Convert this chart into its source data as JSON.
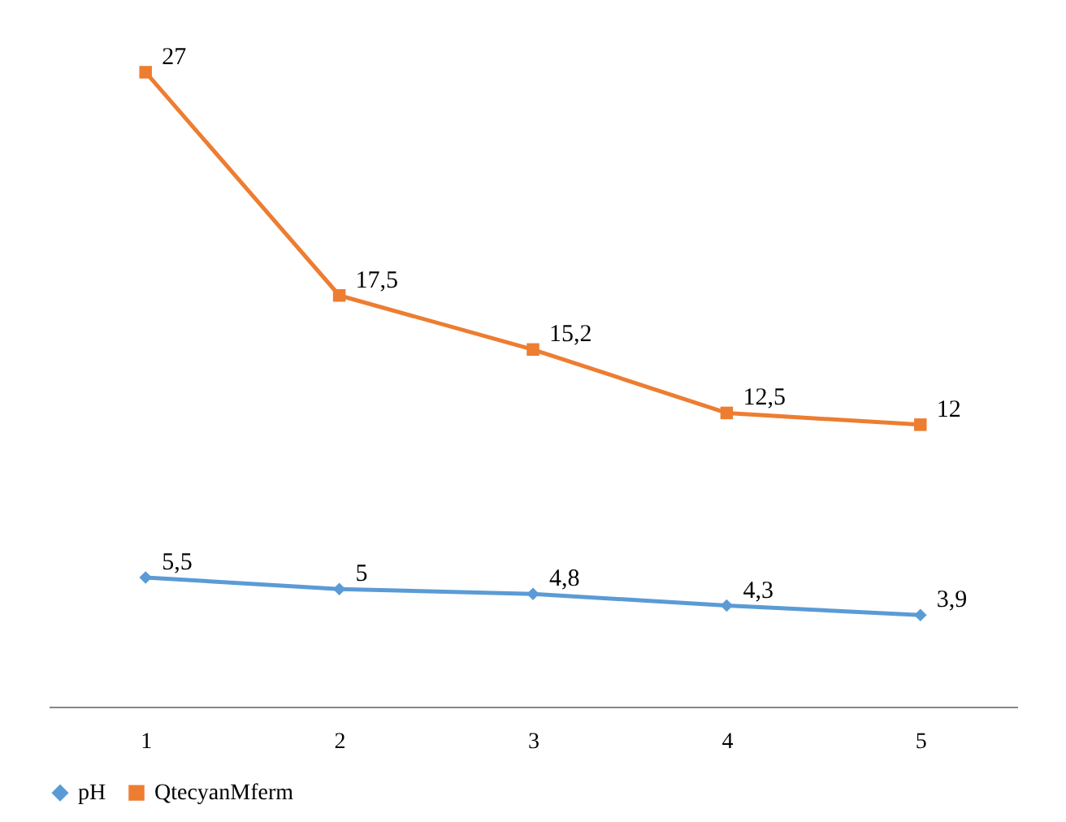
{
  "chart_data": {
    "type": "line",
    "categories": [
      "1",
      "2",
      "3",
      "4",
      "5"
    ],
    "series": [
      {
        "name": "pH",
        "color": "#5b9bd5",
        "marker": "diamond",
        "values": [
          5.5,
          5,
          4.8,
          4.3,
          3.9
        ],
        "value_labels": [
          "5,5",
          "5",
          "4,8",
          "4,3",
          "3,9"
        ]
      },
      {
        "name": "QtecyanMferm",
        "color": "#ed7d31",
        "marker": "square",
        "values": [
          27,
          17.5,
          15.2,
          12.5,
          12
        ],
        "value_labels": [
          "27",
          "17,5",
          "15,2",
          "12,5",
          "12"
        ]
      }
    ],
    "grid": false,
    "legend": "bottom"
  }
}
